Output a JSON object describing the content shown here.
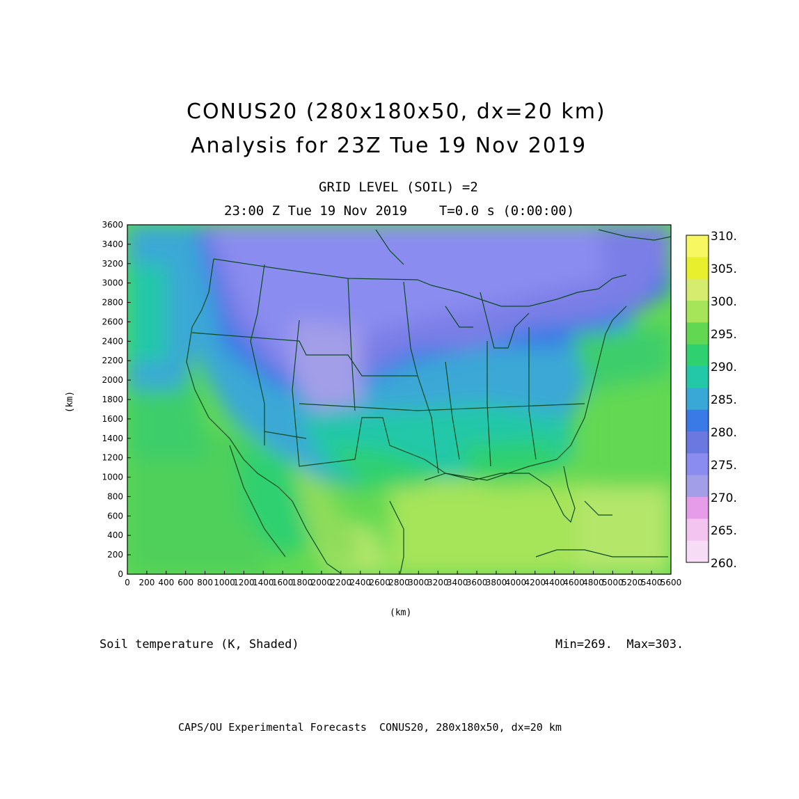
{
  "title_line1": "CONUS20 (280x180x50, dx=20 km)",
  "title_line2": "Analysis for 23Z Tue 19 Nov 2019",
  "subtitle_line1": "GRID LEVEL (SOIL) =2",
  "subtitle_line2": "23:00 Z Tue 19 Nov 2019    T=0.0 s (0:00:00)",
  "axis": {
    "xlabel": "(km)",
    "ylabel": "(km)",
    "xlim": [
      0,
      5600
    ],
    "ylim": [
      0,
      3600
    ],
    "x_ticks": [
      "0",
      "200",
      "400",
      "600",
      "800",
      "1000",
      "1200",
      "1400",
      "1600",
      "1800",
      "2000",
      "2200",
      "2400",
      "2600",
      "2800",
      "3000",
      "3200",
      "3400",
      "3600",
      "3800",
      "4000",
      "4200",
      "4400",
      "4600",
      "4800",
      "5000",
      "5200",
      "5400",
      "5600"
    ],
    "y_ticks": [
      "0",
      "200",
      "400",
      "600",
      "800",
      "1000",
      "1200",
      "1400",
      "1600",
      "1800",
      "2000",
      "2200",
      "2400",
      "2600",
      "2800",
      "3000",
      "3200",
      "3400",
      "3600"
    ]
  },
  "colorbar": {
    "labels": [
      "310.",
      "305.",
      "300.",
      "295.",
      "290.",
      "285.",
      "280.",
      "275.",
      "270.",
      "265.",
      "260."
    ],
    "colors_top_to_bottom": [
      "#f7f762",
      "#e8f02e",
      "#d6ec6e",
      "#a6e45a",
      "#62d852",
      "#2fd070",
      "#22c8a8",
      "#3aa8d6",
      "#3a7ae6",
      "#6a78e0",
      "#8a8cf0",
      "#a39ee8",
      "#e69ce8",
      "#f3c4f0",
      "#f7dcf5"
    ]
  },
  "field_label": "Soil temperature (K, Shaded)",
  "minmax_label": "Min=269.  Max=303.",
  "footer": "CAPS/OU Experimental Forecasts  CONUS20, 280x180x50, dx=20 km"
}
